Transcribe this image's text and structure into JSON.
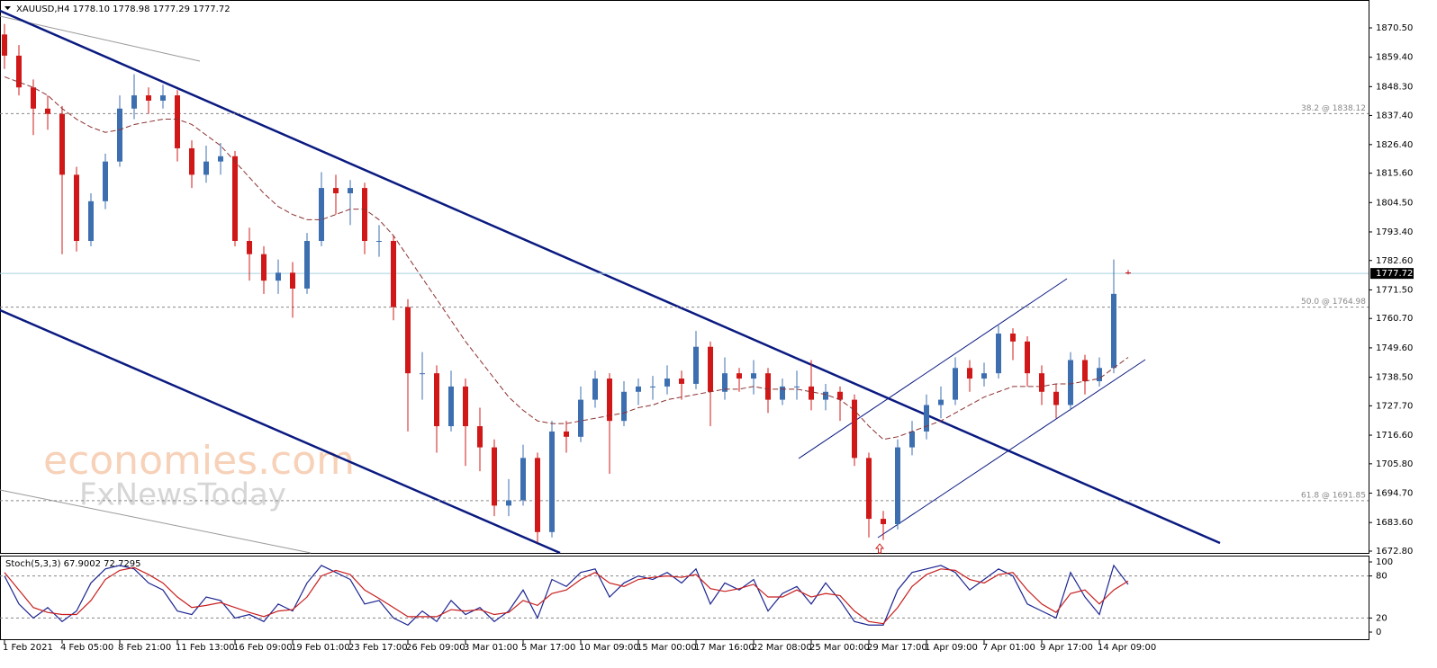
{
  "chart_data": [
    {
      "type": "candlestick",
      "title": "XAUUSD,H4  1778.10 1778.98 1777.29 1777.72",
      "watermark": [
        "economies.com",
        "FxNewsToday"
      ],
      "categories": [
        "1 Feb 2021",
        null,
        null,
        null,
        "4 Feb 05:00",
        null,
        null,
        null,
        "8 Feb 21:00",
        null,
        null,
        null,
        "11 Feb 13:00",
        null,
        null,
        null,
        "16 Feb 09:00",
        null,
        null,
        null,
        "19 Feb 01:00",
        null,
        null,
        null,
        "23 Feb 17:00",
        null,
        null,
        null,
        "26 Feb 09:00",
        null,
        null,
        null,
        "3 Mar 01:00",
        null,
        null,
        null,
        "5 Mar 17:00",
        null,
        null,
        null,
        "10 Mar 09:00",
        null,
        null,
        null,
        "15 Mar 00:00",
        null,
        null,
        null,
        "17 Mar 16:00",
        null,
        null,
        null,
        "22 Mar 08:00",
        null,
        null,
        null,
        "25 Mar 00:00",
        null,
        null,
        null,
        "29 Mar 17:00",
        null,
        null,
        null,
        "1 Apr 09:00",
        null,
        null,
        null,
        "7 Apr 01:00",
        null,
        null,
        null,
        "9 Apr 17:00",
        null,
        null,
        null,
        "14 Apr 09:00",
        null,
        null
      ],
      "open": [
        1868,
        1860,
        1848,
        1840,
        1838,
        1815,
        1790,
        1805,
        1820,
        1840,
        1845,
        1843,
        1845,
        1825,
        1815,
        1820,
        1822,
        1790,
        1785,
        1775,
        1778,
        1772,
        1790,
        1810,
        1808,
        1810,
        1790,
        1790,
        1765,
        1740,
        1740,
        1720,
        1735,
        1720,
        1712,
        1690,
        1692,
        1708,
        1680,
        1718,
        1716,
        1730,
        1738,
        1722,
        1733,
        1735,
        1735,
        1738,
        1736,
        1750,
        1733,
        1740,
        1738,
        1740,
        1730,
        1735,
        1735,
        1730,
        1733,
        1730,
        1708,
        1685,
        1683,
        1712,
        1718,
        1728,
        1730,
        1742,
        1738,
        1740,
        1755,
        1752,
        1740,
        1733,
        1728,
        1745,
        1737,
        1742,
        1778.1
      ],
      "high": [
        1872,
        1864,
        1851,
        1845,
        1841,
        1818,
        1808,
        1823,
        1845,
        1853,
        1848,
        1849,
        1847,
        1828,
        1826,
        1827,
        1824,
        1795,
        1788,
        1783,
        1782,
        1793,
        1816,
        1815,
        1813,
        1812,
        1796,
        1792,
        1768,
        1748,
        1743,
        1741,
        1738,
        1727,
        1715,
        1700,
        1713,
        1710,
        1722,
        1722,
        1735,
        1741,
        1740,
        1737,
        1738,
        1739,
        1743,
        1741,
        1756,
        1752,
        1746,
        1742,
        1745,
        1742,
        1738,
        1741,
        1745,
        1736,
        1735,
        1732,
        1710,
        1688,
        1715,
        1722,
        1732,
        1735,
        1746,
        1745,
        1744,
        1758,
        1757,
        1754,
        1743,
        1736,
        1748,
        1747,
        1746,
        1783,
        1778.98
      ],
      "low": [
        1855,
        1845,
        1830,
        1832,
        1785,
        1786,
        1788,
        1802,
        1818,
        1836,
        1838,
        1840,
        1820,
        1810,
        1812,
        1815,
        1788,
        1775,
        1770,
        1770,
        1761,
        1770,
        1788,
        1800,
        1796,
        1785,
        1784,
        1760,
        1718,
        1730,
        1710,
        1718,
        1705,
        1703,
        1686,
        1686,
        1690,
        1676,
        1678,
        1710,
        1714,
        1727,
        1702,
        1720,
        1728,
        1730,
        1732,
        1730,
        1734,
        1720,
        1730,
        1733,
        1732,
        1725,
        1728,
        1730,
        1726,
        1726,
        1722,
        1705,
        1678,
        1677,
        1681,
        1709,
        1715,
        1723,
        1728,
        1733,
        1735,
        1738,
        1745,
        1735,
        1728,
        1723,
        1726,
        1732,
        1735,
        1740,
        1777.29
      ],
      "close": [
        1860,
        1848,
        1840,
        1838,
        1815,
        1790,
        1805,
        1820,
        1840,
        1845,
        1843,
        1845,
        1825,
        1815,
        1820,
        1822,
        1790,
        1785,
        1775,
        1778,
        1772,
        1790,
        1810,
        1808,
        1810,
        1790,
        1790,
        1765,
        1740,
        1740,
        1720,
        1735,
        1720,
        1712,
        1690,
        1692,
        1708,
        1680,
        1718,
        1716,
        1730,
        1738,
        1722,
        1733,
        1735,
        1735,
        1738,
        1736,
        1750,
        1733,
        1740,
        1738,
        1740,
        1730,
        1735,
        1735,
        1730,
        1733,
        1730,
        1708,
        1685,
        1683,
        1712,
        1718,
        1728,
        1730,
        1742,
        1738,
        1740,
        1755,
        1752,
        1740,
        1733,
        1728,
        1745,
        1737,
        1742,
        1770,
        1777.72
      ],
      "up_color": "#3d6fb0",
      "down_color": "#d01818",
      "ma_color": "#8b3030",
      "ma_values": [
        1852,
        1850,
        1848,
        1845,
        1840,
        1836,
        1833,
        1831,
        1832,
        1834,
        1835,
        1836,
        1836,
        1834,
        1830,
        1826,
        1820,
        1814,
        1808,
        1803,
        1800,
        1798,
        1798,
        1800,
        1802,
        1802,
        1798,
        1792,
        1784,
        1776,
        1768,
        1760,
        1752,
        1745,
        1738,
        1731,
        1726,
        1722,
        1721,
        1721,
        1722,
        1723,
        1724,
        1725,
        1727,
        1728,
        1730,
        1731,
        1732,
        1733,
        1734,
        1734,
        1735,
        1734,
        1734,
        1734,
        1733,
        1732,
        1730,
        1726,
        1720,
        1715,
        1716,
        1718,
        1720,
        1722,
        1725,
        1728,
        1731,
        1733,
        1735,
        1735,
        1735,
        1736,
        1736,
        1737,
        1738,
        1742,
        1746
      ],
      "ylim": [
        1672.12,
        1881.03
      ],
      "yticks": [
        {
          "value": 1870.5,
          "label": "1870.50"
        },
        {
          "value": 1859.4,
          "label": "1859.40"
        },
        {
          "value": 1848.3,
          "label": "1848.30"
        },
        {
          "value": 1837.4,
          "label": "1837.40"
        },
        {
          "value": 1826.4,
          "label": "1826.40"
        },
        {
          "value": 1815.6,
          "label": "1815.60"
        },
        {
          "value": 1804.5,
          "label": "1804.50"
        },
        {
          "value": 1793.4,
          "label": "1793.40"
        },
        {
          "value": 1782.6,
          "label": "1782.60"
        },
        {
          "value": 1771.5,
          "label": "1771.50"
        },
        {
          "value": 1760.7,
          "label": "1760.70"
        },
        {
          "value": 1749.6,
          "label": "1749.60"
        },
        {
          "value": 1738.5,
          "label": "1738.50"
        },
        {
          "value": 1727.7,
          "label": "1727.70"
        },
        {
          "value": 1716.6,
          "label": "1716.60"
        },
        {
          "value": 1705.8,
          "label": "1705.80"
        },
        {
          "value": 1694.7,
          "label": "1694.70"
        },
        {
          "value": 1683.6,
          "label": "1683.60"
        },
        {
          "value": 1672.8,
          "label": "1672.80"
        }
      ],
      "fib_levels": [
        {
          "value": 1838.12,
          "label": "38.2 @ 1838.12"
        },
        {
          "value": 1764.98,
          "label": "50.0 @ 1764.98"
        },
        {
          "value": 1691.85,
          "label": "61.8 @ 1691.85"
        }
      ],
      "last_price": {
        "value": 1777.72,
        "label": "1777.72"
      }
    },
    {
      "type": "line",
      "title": "Stoch(5,3,3) 67.9002 72.7295",
      "series": [
        {
          "color": "#1c2590",
          "values": [
            80,
            40,
            20,
            35,
            15,
            30,
            70,
            90,
            95,
            90,
            70,
            60,
            30,
            25,
            50,
            45,
            20,
            25,
            15,
            40,
            30,
            70,
            95,
            85,
            75,
            40,
            45,
            20,
            10,
            30,
            15,
            45,
            25,
            35,
            15,
            30,
            60,
            20,
            75,
            65,
            85,
            90,
            50,
            70,
            80,
            75,
            85,
            70,
            90,
            40,
            70,
            60,
            75,
            30,
            55,
            65,
            40,
            70,
            45,
            15,
            10,
            10,
            60,
            85,
            90,
            95,
            85,
            60,
            75,
            90,
            80,
            40,
            30,
            20,
            85,
            50,
            25,
            95,
            67.9002
          ]
        },
        {
          "color": "#c81e1e",
          "values": [
            85,
            60,
            35,
            28,
            25,
            25,
            45,
            75,
            88,
            92,
            82,
            70,
            50,
            35,
            38,
            42,
            35,
            28,
            22,
            30,
            32,
            50,
            80,
            88,
            82,
            60,
            48,
            35,
            22,
            22,
            22,
            32,
            30,
            32,
            25,
            28,
            45,
            38,
            55,
            60,
            75,
            85,
            70,
            65,
            75,
            78,
            80,
            78,
            82,
            62,
            58,
            62,
            68,
            50,
            50,
            60,
            50,
            55,
            52,
            30,
            15,
            12,
            35,
            65,
            82,
            90,
            88,
            75,
            70,
            82,
            85,
            60,
            40,
            28,
            55,
            60,
            40,
            60,
            72.7295
          ]
        }
      ],
      "ylim": [
        -11.5,
        109
      ],
      "yticks": [
        100,
        80,
        20,
        0
      ],
      "levels": [
        20,
        80
      ]
    }
  ]
}
